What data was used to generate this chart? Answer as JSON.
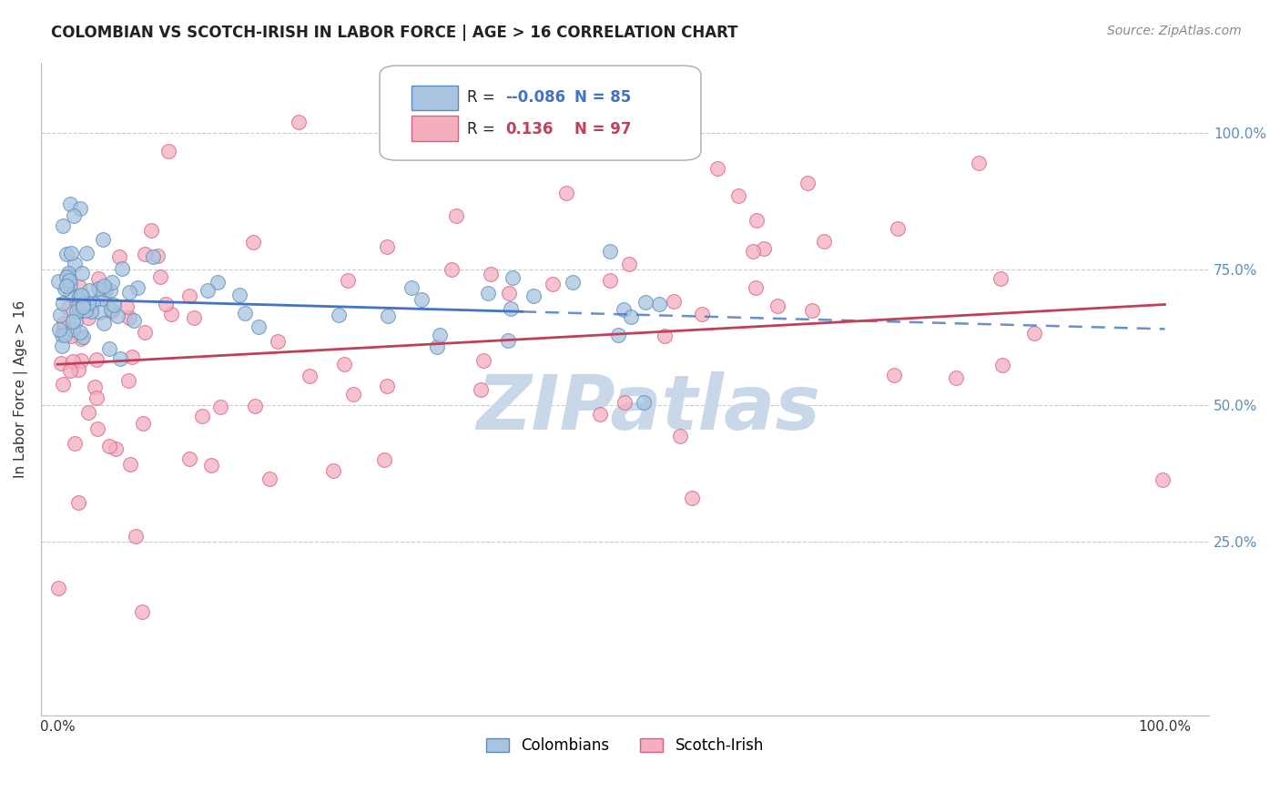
{
  "title": "COLOMBIAN VS SCOTCH-IRISH IN LABOR FORCE | AGE > 16 CORRELATION CHART",
  "source": "Source: ZipAtlas.com",
  "ylabel": "In Labor Force | Age > 16",
  "blue_color": "#A8C4E0",
  "blue_edge_color": "#5B8DB8",
  "pink_color": "#F4AEBE",
  "pink_edge_color": "#D96088",
  "blue_line_color": "#4472C4",
  "pink_line_color": "#C0405A",
  "grid_color": "#CCCCCC",
  "ytick_color": "#5B8DB8",
  "watermark_color": "#C8D8E8",
  "blue_r": "-0.086",
  "blue_n": "85",
  "pink_r": "0.136",
  "pink_n": "97",
  "blue_intercept": 0.695,
  "blue_slope": -0.055,
  "pink_intercept": 0.575,
  "pink_slope": 0.11,
  "seed": 17
}
